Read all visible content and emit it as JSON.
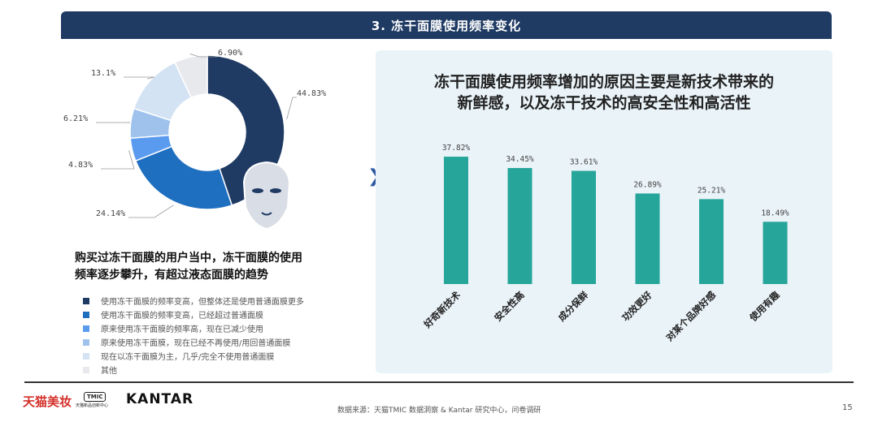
{
  "header": {
    "title": "3. 冻干面膜使用频率变化"
  },
  "left": {
    "headline_line1": "购买过冻干面膜的用户当中，冻干面膜的使用",
    "headline_line2": "频率逐步攀升，有超过液态面膜的趋势"
  },
  "right": {
    "headline_line1": "冻干面膜使用频率增加的原因主要是新技术带来的",
    "headline_line2": "新鲜感，以及冻干技术的高安全性和高活性"
  },
  "chart_data": [
    {
      "type": "pie",
      "donut": true,
      "categories": [
        "使用冻干面膜的频率变高，但整体还是使用普通面膜更多",
        "使用冻干面膜的频率变高，已经超过普通面膜",
        "原来使用冻干面膜的频率高，现在已减少使用",
        "原来使用冻干面膜，现在已经不再使用/用回普通面膜",
        "现在以冻干面膜为主，几乎/完全不使用普通面膜",
        "其他"
      ],
      "values": [
        44.83,
        24.14,
        4.83,
        6.21,
        13.1,
        6.9
      ],
      "labels": [
        "44.83%",
        "24.14%",
        "4.83%",
        "6.21%",
        "13.1%",
        "6.90%"
      ],
      "colors": [
        "#1f3a63",
        "#1f6fc0",
        "#5b9bef",
        "#9ec2ec",
        "#d3e3f4",
        "#e8e9ec"
      ],
      "legend_position": "bottom"
    },
    {
      "type": "bar",
      "categories": [
        "好奇新技术",
        "安全性高",
        "成分保鲜",
        "功效更好",
        "对某个品牌好感",
        "使用有趣"
      ],
      "values": [
        37.82,
        34.45,
        33.61,
        26.89,
        25.21,
        18.49
      ],
      "labels": [
        "37.82%",
        "34.45%",
        "33.61%",
        "26.89%",
        "25.21%",
        "18.49%"
      ],
      "color": "#26a69a",
      "ylim": [
        0,
        40
      ]
    }
  ],
  "footer": {
    "logo_tmall": "天猫美妆",
    "logo_tmic": "TMIC",
    "logo_tmic_sub": "天猫新品创新中心",
    "logo_kantar": "KANTAR",
    "source": "数据来源：天猫TMIC 数据洞察 & Kantar 研究中心，问卷调研",
    "page": "15"
  }
}
